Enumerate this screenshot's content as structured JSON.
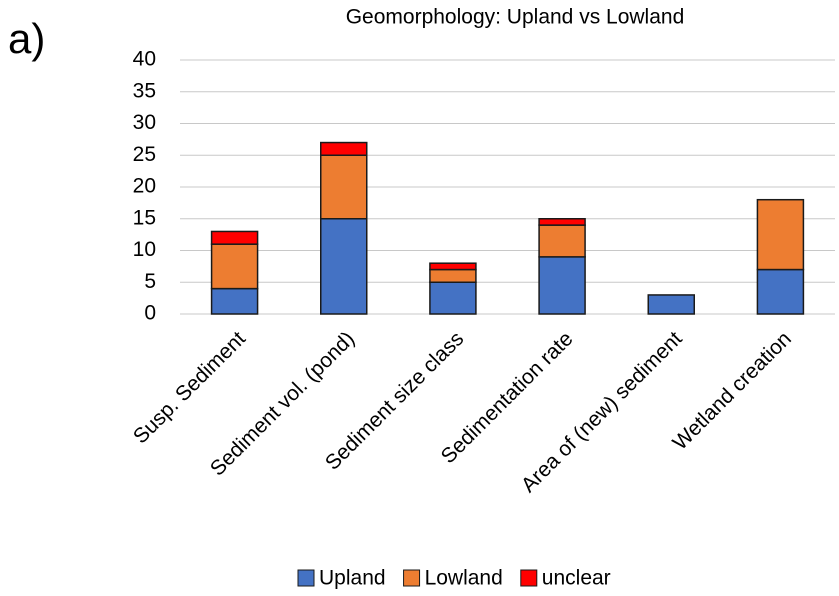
{
  "chart_data": {
    "type": "stacked_bar",
    "panel_label": "a)",
    "title": "Geomorphology:  Upland vs Lowland",
    "categories": [
      "Susp. Sediment",
      "Sediment vol. (pond)",
      "Sediment size class",
      "Sedimentation rate",
      "Area of (new) sediment",
      "Wetland creation"
    ],
    "series": [
      {
        "name": "Upland",
        "color": "#4472c4",
        "values": [
          4,
          15,
          5,
          9,
          3,
          7
        ]
      },
      {
        "name": "Lowland",
        "color": "#ed7d31",
        "values": [
          7,
          10,
          2,
          5,
          0,
          11
        ]
      },
      {
        "name": "unclear",
        "color": "#ff0000",
        "values": [
          2,
          2,
          1,
          1,
          0,
          0
        ]
      }
    ],
    "ylim": [
      0,
      40
    ],
    "yticks": [
      0,
      5,
      10,
      15,
      20,
      25,
      30,
      35,
      40
    ],
    "grid": true,
    "legend": "bottom"
  }
}
